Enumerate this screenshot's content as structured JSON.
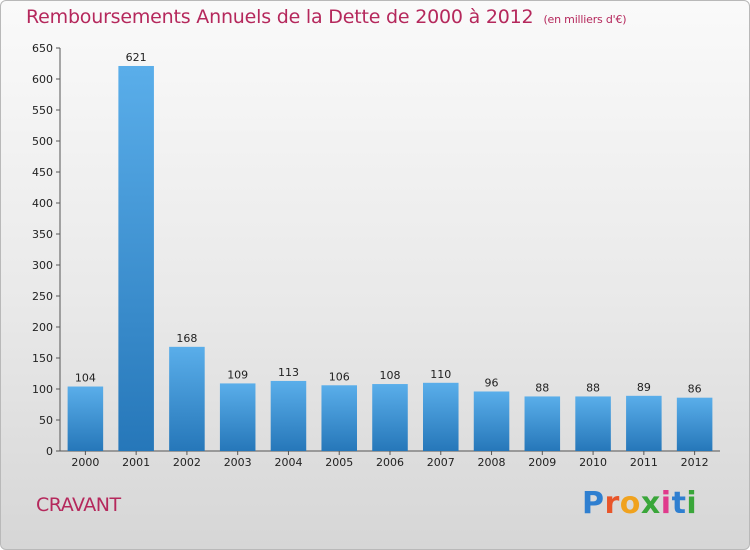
{
  "title": "Remboursements Annuels de la Dette de 2000 à 2012",
  "unit": "(en milliers d'€)",
  "commune": "CRAVANT",
  "logo": {
    "letters": [
      "P",
      "r",
      "o",
      "x",
      "i",
      "t",
      "i"
    ],
    "colors": [
      "#2f7fd0",
      "#e8552a",
      "#f0a21e",
      "#3aa63a",
      "#e03a8c",
      "#2f7fd0",
      "#3aa63a"
    ]
  },
  "colors": {
    "bar_top": "#5aaeea",
    "bar_bottom": "#2677b9",
    "accent": "#b5285c"
  },
  "chart_data": {
    "type": "bar",
    "title": "Remboursements Annuels de la Dette de 2000 à 2012",
    "unit_label": "(en milliers d'€)",
    "categories": [
      "2000",
      "2001",
      "2002",
      "2003",
      "2004",
      "2005",
      "2006",
      "2007",
      "2008",
      "2009",
      "2010",
      "2011",
      "2012"
    ],
    "values": [
      104,
      621,
      168,
      109,
      113,
      106,
      108,
      110,
      96,
      88,
      88,
      89,
      86
    ],
    "ylim": [
      0,
      650
    ],
    "yticks": [
      0,
      50,
      100,
      150,
      200,
      250,
      300,
      350,
      400,
      450,
      500,
      550,
      600,
      650
    ],
    "grid": false,
    "data_labels": true
  }
}
